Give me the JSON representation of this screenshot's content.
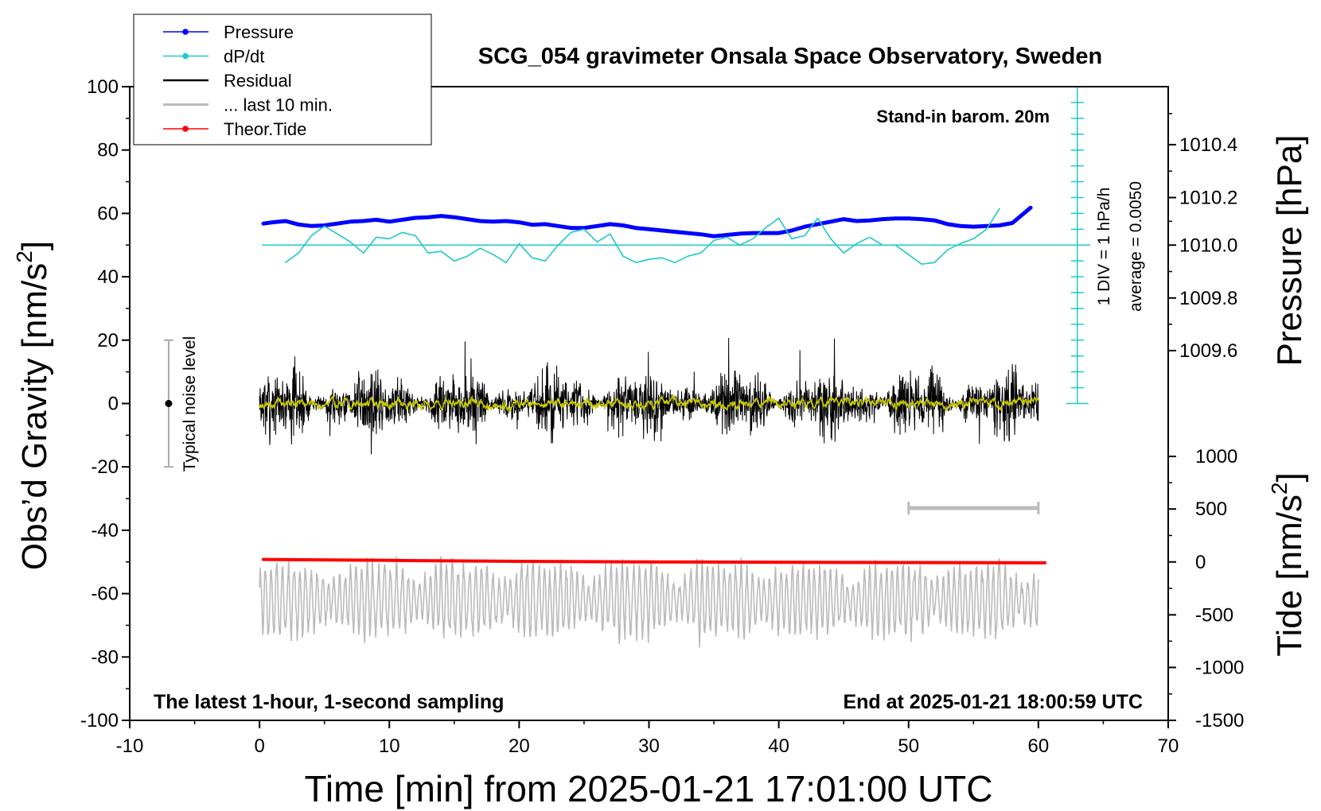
{
  "chart_data": {
    "type": "line",
    "title": "SCG_054 gravimeter Onsala Space Observatory, Sweden",
    "note_top_right": "Stand-in barom. 20m",
    "note_bottom_left": "The latest 1-hour, 1-second sampling",
    "note_bottom_right": "End at 2025-01-21 18:00:59 UTC",
    "xlabel": "Time [min] from 2025-01-21 17:01:00 UTC",
    "ylabel_left_main": "Obs’d Gravity [nm/s",
    "ylabel_left_sup": "2",
    "ylabel_left_close": "]",
    "ylabel_right_pressure": "Pressure [hPa]",
    "ylabel_right_tide_main": "Tide [nm/s",
    "ylabel_right_tide_sup": "2",
    "ylabel_right_tide_close": "]",
    "xlim": [
      -10,
      70
    ],
    "ylim": [
      -100,
      100
    ],
    "x_ticks": [
      "-10",
      "0",
      "10",
      "20",
      "30",
      "40",
      "50",
      "60",
      "70"
    ],
    "x_tick_values": [
      -10,
      0,
      10,
      20,
      30,
      40,
      50,
      60,
      70
    ],
    "y_ticks": [
      "100",
      "80",
      "60",
      "40",
      "20",
      "0",
      "-20",
      "-40",
      "-60",
      "-80",
      "-100"
    ],
    "y_tick_values": [
      100,
      80,
      60,
      40,
      20,
      0,
      -20,
      -40,
      -60,
      -80,
      -100
    ],
    "pressure_axis": {
      "ticks": [
        "1010.4",
        "1010.2",
        "1010.0",
        "1009.8",
        "1009.6"
      ],
      "values": [
        1010.4,
        1010.2,
        1010.0,
        1009.8,
        1009.6
      ],
      "left_equiv": [
        81.7,
        65,
        50,
        33.3,
        16.7
      ]
    },
    "tide_axis": {
      "ticks": [
        "1000",
        "500",
        "0",
        "-500",
        "-1000",
        "-1500"
      ],
      "values": [
        1000,
        500,
        0,
        -500,
        -1000,
        -1500
      ],
      "left_equiv": [
        -16.7,
        -33.3,
        -50,
        -66.7,
        -83.3,
        -100
      ]
    },
    "dpdt_scale": {
      "label": "1 DIV = 1 hPa/h",
      "average": "average = 0.0050",
      "x": 63,
      "y_top": 100,
      "y_bottom": 0,
      "y_zero": 50,
      "tick_step": 5
    },
    "noise_bar": {
      "label": "Typical noise level",
      "x": -7,
      "y_center": 0,
      "y_low": -20,
      "y_high": 20
    },
    "period_bar": {
      "x_start": 50,
      "x_end": 60,
      "y": -33
    },
    "legend": [
      {
        "label": "Pressure",
        "color": "#0000ff",
        "marker": true
      },
      {
        "label": "dP/dt",
        "color": "#20c8c8",
        "marker": true
      },
      {
        "label": "Residual",
        "color": "#000000",
        "marker": false
      },
      {
        "label": "... last 10 min.",
        "color": "#bbbbbb",
        "marker": false
      },
      {
        "label": "Theor.Tide",
        "color": "#ff0000",
        "marker": true
      }
    ],
    "series": [
      {
        "name": "Pressure",
        "color": "#0000ff",
        "x": [
          0.3,
          1,
          2,
          3,
          4,
          5,
          6,
          7,
          8,
          9,
          10,
          11,
          12,
          13,
          14,
          15,
          16,
          17,
          18,
          19,
          20,
          21,
          22,
          23,
          24,
          25,
          26,
          27,
          28,
          29,
          30,
          31,
          32,
          33,
          34,
          35,
          36,
          37,
          38,
          39,
          40,
          41,
          42,
          43,
          44,
          45,
          46,
          47,
          48,
          49,
          50,
          51,
          52,
          53,
          54,
          55,
          56,
          57,
          58,
          59.4
        ],
        "y": [
          56.8,
          57.2,
          57.6,
          56.5,
          56.0,
          56.2,
          56.8,
          57.4,
          57.6,
          58.0,
          57.4,
          58.0,
          58.6,
          58.8,
          59.2,
          58.8,
          58.2,
          57.6,
          57.4,
          57.6,
          57.2,
          56.4,
          56.6,
          56.0,
          55.4,
          55.4,
          56.0,
          56.6,
          56.2,
          55.4,
          55.0,
          54.6,
          54.2,
          53.8,
          53.4,
          52.8,
          53.2,
          53.6,
          53.8,
          53.8,
          53.8,
          54.6,
          55.8,
          56.6,
          57.4,
          58.2,
          57.6,
          57.8,
          58.2,
          58.4,
          58.4,
          58.2,
          57.8,
          56.6,
          56.0,
          55.8,
          56.0,
          56.2,
          57.0,
          61.8
        ]
      },
      {
        "name": "dP/dt",
        "color": "#20c8c8",
        "x": [
          2,
          3,
          4,
          5,
          6,
          7,
          8,
          9,
          10,
          11,
          12,
          13,
          14,
          15,
          16,
          17,
          18,
          19,
          20,
          21,
          22,
          23,
          24,
          25,
          26,
          27,
          28,
          29,
          30,
          31,
          32,
          33,
          34,
          35,
          36,
          37,
          38,
          39,
          40,
          41,
          42,
          43,
          44,
          45,
          46,
          47,
          48,
          49,
          50,
          51,
          52,
          53,
          54,
          55,
          56,
          57
        ],
        "y": [
          44.5,
          47.5,
          53,
          56,
          53.5,
          51,
          47.5,
          52.5,
          52,
          54,
          53,
          47.5,
          48,
          45,
          46.5,
          49,
          47,
          44.5,
          50.5,
          46,
          45,
          50,
          54,
          55,
          51,
          53.5,
          46.5,
          44.5,
          45.5,
          46,
          44.5,
          46.5,
          47.5,
          51.5,
          52.5,
          50,
          52,
          55.5,
          58.5,
          52,
          53,
          58.5,
          52,
          47.5,
          50.5,
          52.5,
          50,
          50,
          47,
          44,
          44.5,
          48.5,
          50.5,
          52,
          55,
          61.5
        ]
      },
      {
        "name": "Theor.Tide",
        "color": "#ff0000",
        "x": [
          0.3,
          10,
          20,
          30,
          40,
          50,
          60.5
        ],
        "y": [
          -49.2,
          -49.5,
          -49.8,
          -50.0,
          -50.1,
          -50.2,
          -50.3
        ]
      }
    ],
    "noise_series": [
      {
        "name": "Residual",
        "color": "#000000",
        "x_start": 0,
        "x_end": 60,
        "center": 0,
        "amplitude": 8.5,
        "seed": 7
      },
      {
        "name": "Residual (smoothed)",
        "color": "#c8c800",
        "x_start": 0,
        "x_end": 60,
        "center": 0,
        "amplitude": 1.2,
        "seed": 19
      },
      {
        "name": "... last 10 min.",
        "color": "#bbbbbb",
        "x_start": 0,
        "x_end": 60,
        "center": -62,
        "amplitude": 10,
        "seed": 31
      }
    ]
  }
}
